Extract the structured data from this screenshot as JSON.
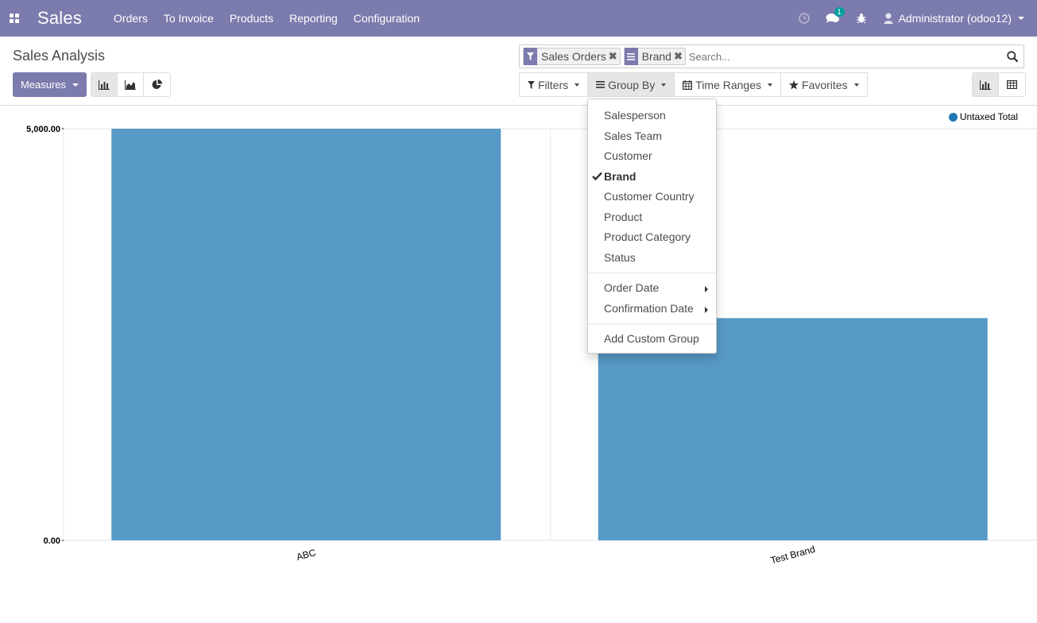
{
  "navbar": {
    "app_name": "Sales",
    "menu": [
      "Orders",
      "To Invoice",
      "Products",
      "Reporting",
      "Configuration"
    ],
    "messages_count": "1",
    "user": "Administrator (odoo12)"
  },
  "control_panel": {
    "title": "Sales Analysis",
    "measures_label": "Measures",
    "facets": [
      {
        "icon": "filter-icon",
        "label": "Sales Orders"
      },
      {
        "icon": "group-by-icon",
        "label": "Brand"
      }
    ],
    "search_placeholder": "Search...",
    "filters_label": "Filters",
    "group_by_label": "Group By",
    "time_ranges_label": "Time Ranges",
    "favorites_label": "Favorites"
  },
  "group_by_menu": {
    "items": [
      {
        "label": "Salesperson",
        "checked": false
      },
      {
        "label": "Sales Team",
        "checked": false
      },
      {
        "label": "Customer",
        "checked": false
      },
      {
        "label": "Brand",
        "checked": true
      },
      {
        "label": "Customer Country",
        "checked": false
      },
      {
        "label": "Product",
        "checked": false
      },
      {
        "label": "Product Category",
        "checked": false
      },
      {
        "label": "Status",
        "checked": false
      }
    ],
    "date_items": [
      "Order Date",
      "Confirmation Date"
    ],
    "custom_label": "Add Custom Group"
  },
  "chart_data": {
    "type": "bar",
    "categories": [
      "ABC",
      "Test Brand"
    ],
    "series": [
      {
        "name": "Untaxed Total",
        "values": [
          5000,
          2700
        ],
        "color": "#5799c7"
      }
    ],
    "y_tick_labels": [
      "5,000.00",
      "0.00"
    ],
    "ylim": [
      0,
      5000
    ],
    "legend_position": "top-right",
    "legend_dot_color": "#1f77b4"
  },
  "colors": {
    "brand": "#7c7bad",
    "bar": "#5799c7"
  }
}
